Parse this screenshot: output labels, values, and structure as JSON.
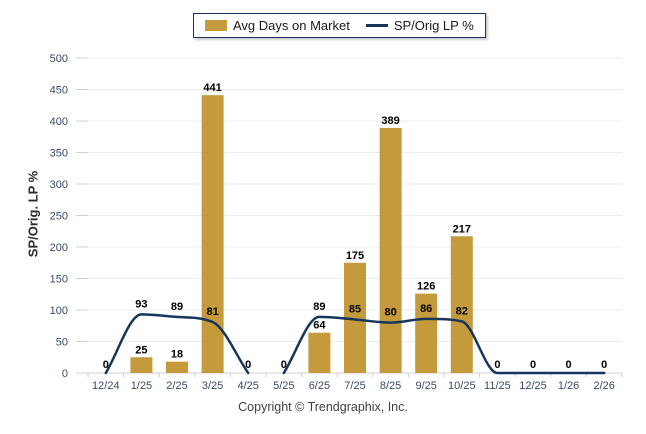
{
  "legend": {
    "items": [
      {
        "label": "Avg Days on Market",
        "type": "bar",
        "color": "#C49A3C"
      },
      {
        "label": "SP/Orig LP %",
        "type": "line",
        "color": "#17365D"
      }
    ]
  },
  "y_axis_title": "SP/Orig. LP %",
  "copyright": "Copyright © Trendgraphix, Inc.",
  "chart_data": {
    "type": "bar",
    "subtype": "bar-and-line-combo",
    "categories": [
      "12/24",
      "1/25",
      "2/25",
      "3/25",
      "4/25",
      "5/25",
      "6/25",
      "7/25",
      "8/25",
      "9/25",
      "10/25",
      "11/25",
      "12/25",
      "1/26",
      "2/26"
    ],
    "series": [
      {
        "name": "Avg Days on Market",
        "type": "bar",
        "color": "#C49A3C",
        "values": [
          0,
          25,
          18,
          441,
          0,
          0,
          64,
          175,
          389,
          126,
          217,
          0,
          0,
          0,
          0
        ]
      },
      {
        "name": "SP/Orig LP %",
        "type": "line",
        "color": "#17365D",
        "values": [
          0,
          93,
          89,
          81,
          0,
          0,
          89,
          85,
          80,
          86,
          82,
          0,
          0,
          0,
          0
        ],
        "segments": [
          [
            0,
            4
          ],
          [
            5,
            14
          ]
        ]
      }
    ],
    "title": "",
    "xlabel": "",
    "ylabel": "SP/Orig. LP %",
    "ylim": [
      0,
      500
    ],
    "ytick_step": 50,
    "grid": true,
    "legend_position": "top-center",
    "colors": {
      "grid_line": "#EDEDED",
      "axis_line": "#D0D0D0",
      "tick_label": "#3A4A68",
      "data_label": "#000000"
    }
  }
}
